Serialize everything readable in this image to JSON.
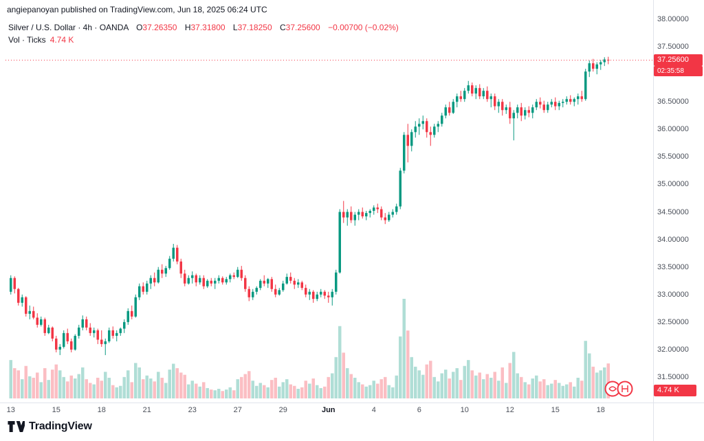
{
  "attribution": "angiepanoyan published on TradingView.com, Jun 18, 2025 06:24 UTC",
  "legend": {
    "symbol": "Silver / U.S. Dollar · 4h · OANDA",
    "ohlc": {
      "o_label": "O",
      "o": "37.26350",
      "h_label": "H",
      "h": "37.31800",
      "l_label": "L",
      "l": "37.18250",
      "c_label": "C",
      "c": "37.25600",
      "change": "−0.00700 (−0.02%)"
    },
    "vol_label": "Vol · Ticks",
    "vol_value": "4.74 K"
  },
  "badges": {
    "last_price": "37.25600",
    "countdown": "02:35:58",
    "volume": "4.74 K"
  },
  "price_axis_labels": [
    "38.00000",
    "37.50000",
    "37.00000",
    "36.50000",
    "36.00000",
    "35.50000",
    "35.00000",
    "34.50000",
    "34.00000",
    "33.50000",
    "33.00000",
    "32.50000",
    "32.00000",
    "31.50000"
  ],
  "time_axis": [
    {
      "label": "13",
      "i": 0,
      "bold": false
    },
    {
      "label": "15",
      "i": 12,
      "bold": false
    },
    {
      "label": "18",
      "i": 24,
      "bold": false
    },
    {
      "label": "21",
      "i": 36,
      "bold": false
    },
    {
      "label": "23",
      "i": 48,
      "bold": false
    },
    {
      "label": "27",
      "i": 60,
      "bold": false
    },
    {
      "label": "29",
      "i": 72,
      "bold": false
    },
    {
      "label": "Jun",
      "i": 84,
      "bold": true
    },
    {
      "label": "4",
      "i": 96,
      "bold": false
    },
    {
      "label": "6",
      "i": 108,
      "bold": false
    },
    {
      "label": "10",
      "i": 120,
      "bold": false
    },
    {
      "label": "12",
      "i": 132,
      "bold": false
    },
    {
      "label": "15",
      "i": 144,
      "bold": false
    },
    {
      "label": "18",
      "i": 156,
      "bold": false
    }
  ],
  "footer": {
    "brand": "TradingView"
  },
  "colors": {
    "up": "#089981",
    "down": "#f23645",
    "accent_red": "#f23645",
    "text": "#131722",
    "muted": "#4a4f59",
    "axis_line": "#e0e3eb",
    "vol_up": "rgba(8,153,129,0.32)",
    "vol_down": "rgba(242,54,69,0.32)"
  },
  "chart_data": {
    "type": "candlestick",
    "title": "Silver / U.S. Dollar",
    "symbol": "XAGUSD",
    "exchange": "OANDA",
    "timeframe": "4h",
    "y_range": [
      31.5,
      38.0
    ],
    "y_tick_step": 0.5,
    "volume_unit": "Ticks",
    "last": {
      "open": 37.2635,
      "high": 37.318,
      "low": 37.1825,
      "close": 37.256,
      "change": -0.007,
      "change_pct": -0.02,
      "volume_ticks": 4740
    },
    "candles": [
      [
        33.05,
        33.35,
        33.0,
        33.3,
        5200
      ],
      [
        33.3,
        33.33,
        33.02,
        33.1,
        4100
      ],
      [
        33.1,
        33.12,
        32.8,
        32.85,
        3800
      ],
      [
        32.85,
        33.0,
        32.78,
        32.95,
        2600
      ],
      [
        32.95,
        32.97,
        32.6,
        32.65,
        4400
      ],
      [
        32.65,
        32.8,
        32.55,
        32.7,
        3000
      ],
      [
        32.7,
        32.78,
        32.55,
        32.58,
        2800
      ],
      [
        32.58,
        32.66,
        32.4,
        32.45,
        3500
      ],
      [
        32.45,
        32.6,
        32.42,
        32.55,
        2200
      ],
      [
        32.55,
        32.58,
        32.25,
        32.3,
        4100
      ],
      [
        32.3,
        32.45,
        32.28,
        32.4,
        2500
      ],
      [
        32.4,
        32.42,
        32.15,
        32.2,
        3900
      ],
      [
        32.2,
        32.25,
        31.95,
        32.0,
        4600
      ],
      [
        32.0,
        32.1,
        31.9,
        32.05,
        3800
      ],
      [
        32.05,
        32.35,
        32.02,
        32.3,
        2900
      ],
      [
        32.3,
        32.38,
        32.1,
        32.15,
        2300
      ],
      [
        32.15,
        32.2,
        31.95,
        32.0,
        3100
      ],
      [
        32.0,
        32.28,
        31.98,
        32.25,
        2700
      ],
      [
        32.25,
        32.45,
        32.2,
        32.4,
        3300
      ],
      [
        32.4,
        32.62,
        32.35,
        32.55,
        4200
      ],
      [
        32.55,
        32.6,
        32.35,
        32.4,
        2600
      ],
      [
        32.4,
        32.48,
        32.25,
        32.3,
        2100
      ],
      [
        32.3,
        32.4,
        32.22,
        32.35,
        1900
      ],
      [
        32.35,
        32.38,
        32.1,
        32.18,
        2800
      ],
      [
        32.18,
        32.35,
        32.05,
        32.1,
        2400
      ],
      [
        32.1,
        32.2,
        31.9,
        32.15,
        3600
      ],
      [
        32.15,
        32.4,
        32.12,
        32.35,
        2800
      ],
      [
        32.35,
        32.42,
        32.2,
        32.25,
        1800
      ],
      [
        32.25,
        32.35,
        32.15,
        32.3,
        1500
      ],
      [
        32.3,
        32.4,
        32.25,
        32.38,
        1700
      ],
      [
        32.38,
        32.55,
        32.3,
        32.5,
        2900
      ],
      [
        32.5,
        32.75,
        32.45,
        32.7,
        3800
      ],
      [
        32.7,
        32.8,
        32.55,
        32.6,
        2200
      ],
      [
        32.6,
        33.0,
        32.58,
        32.95,
        4800
      ],
      [
        32.95,
        33.2,
        32.9,
        33.15,
        4200
      ],
      [
        33.15,
        33.22,
        33.0,
        33.05,
        2600
      ],
      [
        33.05,
        33.25,
        33.0,
        33.2,
        3100
      ],
      [
        33.2,
        33.35,
        33.1,
        33.3,
        2700
      ],
      [
        33.3,
        33.4,
        33.15,
        33.22,
        2300
      ],
      [
        33.22,
        33.5,
        33.2,
        33.45,
        3600
      ],
      [
        33.45,
        33.55,
        33.3,
        33.38,
        2800
      ],
      [
        33.38,
        33.52,
        33.32,
        33.48,
        2100
      ],
      [
        33.48,
        33.7,
        33.45,
        33.65,
        3900
      ],
      [
        33.65,
        33.92,
        33.6,
        33.85,
        4700
      ],
      [
        33.85,
        33.9,
        33.55,
        33.6,
        4100
      ],
      [
        33.6,
        33.65,
        33.3,
        33.38,
        3500
      ],
      [
        33.38,
        33.45,
        33.15,
        33.2,
        3200
      ],
      [
        33.2,
        33.35,
        33.18,
        33.3,
        1900
      ],
      [
        33.3,
        33.42,
        33.2,
        33.35,
        2400
      ],
      [
        33.35,
        33.38,
        33.15,
        33.22,
        2000
      ],
      [
        33.22,
        33.35,
        33.18,
        33.3,
        1600
      ],
      [
        33.3,
        33.35,
        33.1,
        33.15,
        2200
      ],
      [
        33.15,
        33.28,
        33.12,
        33.25,
        1400
      ],
      [
        33.25,
        33.3,
        33.15,
        33.2,
        1200
      ],
      [
        33.2,
        33.3,
        33.1,
        33.25,
        1100
      ],
      [
        33.25,
        33.35,
        33.2,
        33.3,
        1300
      ],
      [
        33.3,
        33.33,
        33.18,
        33.22,
        1000
      ],
      [
        33.22,
        33.32,
        33.18,
        33.28,
        1200
      ],
      [
        33.28,
        33.38,
        33.22,
        33.35,
        1500
      ],
      [
        33.35,
        33.4,
        33.28,
        33.32,
        1100
      ],
      [
        33.32,
        33.5,
        33.3,
        33.45,
        2600
      ],
      [
        33.45,
        33.52,
        33.25,
        33.3,
        2900
      ],
      [
        33.3,
        33.35,
        33.05,
        33.1,
        3300
      ],
      [
        33.1,
        33.15,
        32.88,
        32.95,
        3700
      ],
      [
        32.95,
        33.1,
        32.9,
        33.05,
        2400
      ],
      [
        33.05,
        33.15,
        33.0,
        33.12,
        1700
      ],
      [
        33.12,
        33.28,
        33.08,
        33.25,
        2100
      ],
      [
        33.25,
        33.35,
        33.15,
        33.2,
        1800
      ],
      [
        33.2,
        33.3,
        33.12,
        33.28,
        1500
      ],
      [
        33.28,
        33.32,
        33.05,
        33.1,
        2500
      ],
      [
        33.1,
        33.18,
        32.95,
        33.0,
        2800
      ],
      [
        33.0,
        33.12,
        32.98,
        33.08,
        1600
      ],
      [
        33.08,
        33.25,
        33.05,
        33.2,
        2200
      ],
      [
        33.2,
        33.38,
        33.18,
        33.32,
        2600
      ],
      [
        33.32,
        33.4,
        33.2,
        33.25,
        1900
      ],
      [
        33.25,
        33.3,
        33.1,
        33.18,
        1700
      ],
      [
        33.18,
        33.28,
        33.12,
        33.22,
        1300
      ],
      [
        33.22,
        33.25,
        33.08,
        33.12,
        1500
      ],
      [
        33.12,
        33.18,
        32.95,
        33.0,
        2400
      ],
      [
        33.0,
        33.1,
        32.9,
        33.05,
        2000
      ],
      [
        33.05,
        33.08,
        32.85,
        32.92,
        2700
      ],
      [
        32.92,
        33.05,
        32.88,
        33.0,
        1800
      ],
      [
        33.0,
        33.1,
        32.95,
        33.05,
        1400
      ],
      [
        33.05,
        33.08,
        32.92,
        32.98,
        1600
      ],
      [
        32.98,
        33.05,
        32.85,
        32.95,
        2900
      ],
      [
        32.95,
        33.1,
        32.8,
        33.05,
        3400
      ],
      [
        33.05,
        33.45,
        33.0,
        33.4,
        5600
      ],
      [
        33.4,
        34.55,
        33.38,
        34.5,
        9800
      ],
      [
        34.5,
        34.7,
        34.3,
        34.4,
        6200
      ],
      [
        34.4,
        34.55,
        34.25,
        34.5,
        4100
      ],
      [
        34.5,
        34.6,
        34.3,
        34.35,
        3300
      ],
      [
        34.35,
        34.5,
        34.25,
        34.45,
        2800
      ],
      [
        34.45,
        34.55,
        34.35,
        34.5,
        2200
      ],
      [
        34.5,
        34.58,
        34.38,
        34.42,
        1900
      ],
      [
        34.42,
        34.52,
        34.35,
        34.48,
        1600
      ],
      [
        34.48,
        34.55,
        34.4,
        34.52,
        1800
      ],
      [
        34.52,
        34.62,
        34.45,
        34.58,
        2400
      ],
      [
        34.58,
        34.65,
        34.48,
        34.55,
        2000
      ],
      [
        34.55,
        34.6,
        34.35,
        34.4,
        2600
      ],
      [
        34.4,
        34.48,
        34.28,
        34.35,
        2900
      ],
      [
        34.35,
        34.5,
        34.32,
        34.45,
        1800
      ],
      [
        34.45,
        34.55,
        34.4,
        34.5,
        1500
      ],
      [
        34.5,
        34.65,
        34.45,
        34.6,
        3100
      ],
      [
        34.6,
        35.3,
        34.55,
        35.25,
        8400
      ],
      [
        35.25,
        35.95,
        35.2,
        35.9,
        13500
      ],
      [
        35.9,
        36.1,
        35.4,
        35.7,
        9200
      ],
      [
        35.7,
        36.0,
        35.6,
        35.95,
        5600
      ],
      [
        35.95,
        36.15,
        35.85,
        36.05,
        4300
      ],
      [
        36.05,
        36.2,
        35.9,
        36.1,
        3800
      ],
      [
        36.1,
        36.25,
        36.0,
        36.15,
        3200
      ],
      [
        36.15,
        36.2,
        35.85,
        35.95,
        4600
      ],
      [
        35.95,
        36.05,
        35.7,
        35.9,
        5100
      ],
      [
        35.9,
        36.1,
        35.85,
        36.05,
        2900
      ],
      [
        36.05,
        36.15,
        35.95,
        36.1,
        2300
      ],
      [
        36.1,
        36.3,
        36.05,
        36.25,
        3400
      ],
      [
        36.25,
        36.45,
        36.2,
        36.4,
        3900
      ],
      [
        36.4,
        36.5,
        36.25,
        36.3,
        2700
      ],
      [
        36.3,
        36.55,
        36.28,
        36.5,
        3600
      ],
      [
        36.5,
        36.65,
        36.4,
        36.6,
        4100
      ],
      [
        36.6,
        36.7,
        36.5,
        36.55,
        2500
      ],
      [
        36.55,
        36.75,
        36.5,
        36.7,
        4400
      ],
      [
        36.7,
        36.88,
        36.65,
        36.8,
        5200
      ],
      [
        36.8,
        36.85,
        36.6,
        36.65,
        3800
      ],
      [
        36.65,
        36.8,
        36.55,
        36.75,
        3100
      ],
      [
        36.75,
        36.82,
        36.55,
        36.6,
        3500
      ],
      [
        36.6,
        36.75,
        36.55,
        36.7,
        2600
      ],
      [
        36.7,
        36.78,
        36.5,
        36.55,
        3300
      ],
      [
        36.55,
        36.65,
        36.4,
        36.6,
        2800
      ],
      [
        36.6,
        36.65,
        36.35,
        36.42,
        3600
      ],
      [
        36.42,
        36.55,
        36.3,
        36.5,
        2400
      ],
      [
        36.5,
        36.55,
        36.25,
        36.35,
        4200
      ],
      [
        36.35,
        36.45,
        36.28,
        36.4,
        2100
      ],
      [
        36.4,
        36.5,
        36.1,
        36.2,
        4800
      ],
      [
        36.2,
        36.35,
        35.8,
        36.3,
        6300
      ],
      [
        36.3,
        36.45,
        36.2,
        36.4,
        3400
      ],
      [
        36.4,
        36.48,
        36.15,
        36.25,
        2900
      ],
      [
        36.25,
        36.4,
        36.18,
        36.35,
        2200
      ],
      [
        36.35,
        36.42,
        36.22,
        36.3,
        1900
      ],
      [
        36.3,
        36.45,
        36.2,
        36.4,
        2700
      ],
      [
        36.4,
        36.55,
        36.35,
        36.5,
        3100
      ],
      [
        36.5,
        36.58,
        36.38,
        36.45,
        2300
      ],
      [
        36.45,
        36.52,
        36.3,
        36.35,
        2600
      ],
      [
        36.35,
        36.5,
        36.3,
        36.45,
        1800
      ],
      [
        36.45,
        36.55,
        36.4,
        36.5,
        2000
      ],
      [
        36.5,
        36.58,
        36.35,
        36.42,
        2500
      ],
      [
        36.42,
        36.52,
        36.35,
        36.48,
        2100
      ],
      [
        36.48,
        36.55,
        36.4,
        36.5,
        1700
      ],
      [
        36.5,
        36.6,
        36.45,
        36.55,
        1900
      ],
      [
        36.55,
        36.62,
        36.45,
        36.5,
        2200
      ],
      [
        36.5,
        36.58,
        36.42,
        36.55,
        1600
      ],
      [
        36.55,
        36.65,
        36.45,
        36.6,
        2800
      ],
      [
        36.6,
        36.7,
        36.5,
        36.55,
        2400
      ],
      [
        36.55,
        37.1,
        36.52,
        37.05,
        7800
      ],
      [
        37.05,
        37.25,
        36.95,
        37.2,
        6100
      ],
      [
        37.2,
        37.28,
        37.05,
        37.1,
        4300
      ],
      [
        37.1,
        37.22,
        37.0,
        37.18,
        3500
      ],
      [
        37.18,
        37.26,
        37.08,
        37.22,
        3800
      ],
      [
        37.22,
        37.31,
        37.15,
        37.27,
        4200
      ],
      [
        37.2635,
        37.318,
        37.1825,
        37.256,
        4740
      ]
    ]
  }
}
